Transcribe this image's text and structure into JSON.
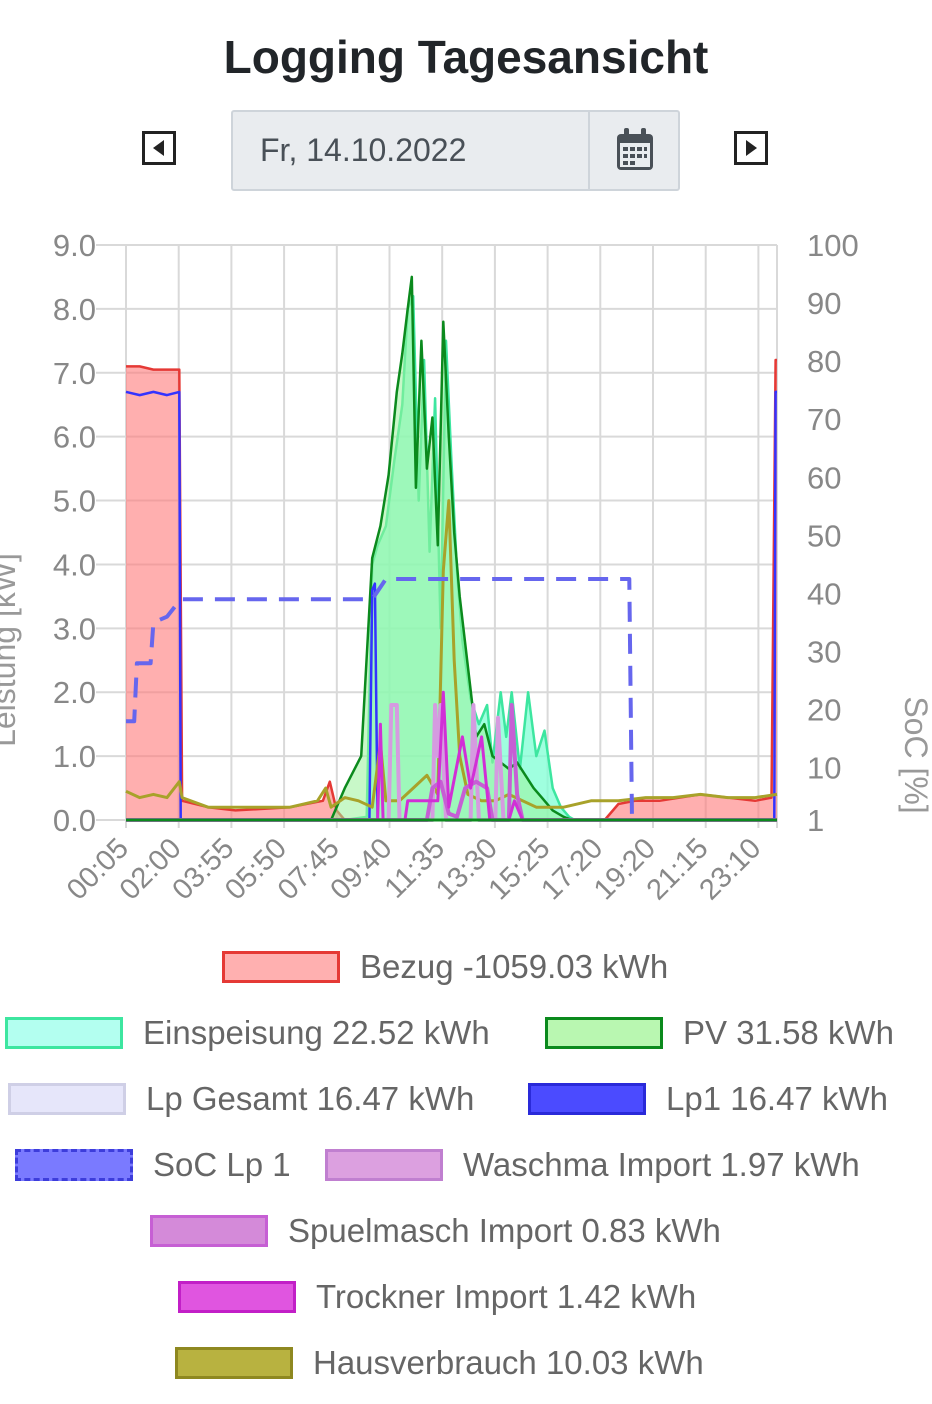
{
  "page": {
    "title": "Logging Tagesansicht",
    "date_value": "Fr, 14.10.2022",
    "prev_icon": "caret-left-icon",
    "next_icon": "caret-right-icon",
    "calendar_icon": "calendar-icon"
  },
  "chart_data": {
    "type": "area",
    "xlabel": "",
    "ylabel": "Leistung [kW]",
    "y2label": "SoC [%]",
    "ylim": [
      0,
      9
    ],
    "y2lim": [
      1,
      100
    ],
    "y_ticks": [
      "0.0",
      "1.0",
      "2.0",
      "3.0",
      "4.0",
      "5.0",
      "6.0",
      "7.0",
      "8.0",
      "9.0"
    ],
    "y2_ticks": [
      "1",
      "10",
      "20",
      "30",
      "40",
      "50",
      "60",
      "70",
      "80",
      "90",
      "100"
    ],
    "x_ticks": [
      "00:05",
      "02:00",
      "03:55",
      "05:50",
      "07:45",
      "09:40",
      "11:35",
      "13:30",
      "15:25",
      "17:20",
      "19:20",
      "21:15",
      "23:10"
    ],
    "grid": true,
    "legend_position": "bottom",
    "colors": {
      "bezug": "#ff7a7a",
      "bezug_line": "#e53935",
      "einspeisung": "#7fffd4",
      "einspeisung_line": "#3de6a0",
      "pv": "#9bf29b",
      "pv_line": "#0b8a1d",
      "lp_gesamt": "#e6e6fa",
      "lp1": "#3333ff",
      "soc": "#6666ee",
      "waschma": "#d59be0",
      "spuelmasch": "#c65fd4",
      "trockner": "#d12fd6",
      "haus": "#a8a22a"
    },
    "series": [
      {
        "name": "Bezug",
        "legend": "Bezug -1059.03 kWh",
        "axis": "y",
        "points": [
          [
            0,
            7.1
          ],
          [
            0.5,
            7.1
          ],
          [
            1,
            7.05
          ],
          [
            1.3,
            7.05
          ],
          [
            1.95,
            7.05
          ],
          [
            2.05,
            0.3
          ],
          [
            3,
            0.2
          ],
          [
            4,
            0.15
          ],
          [
            6,
            0.2
          ],
          [
            7.2,
            0.3
          ],
          [
            7.45,
            0.6
          ],
          [
            7.7,
            0.15
          ],
          [
            8,
            0
          ],
          [
            17.5,
            0
          ],
          [
            18,
            0.25
          ],
          [
            18.6,
            0.3
          ],
          [
            19.5,
            0.3
          ],
          [
            21,
            0.4
          ],
          [
            23,
            0.3
          ],
          [
            23.6,
            0.35
          ],
          [
            23.75,
            7.2
          ],
          [
            23.8,
            7.2
          ]
        ]
      },
      {
        "name": "Einspeisung",
        "legend": "Einspeisung 22.52 kWh",
        "axis": "y",
        "points": [
          [
            0,
            0
          ],
          [
            8,
            0
          ],
          [
            8.8,
            0.05
          ],
          [
            9.0,
            4.0
          ],
          [
            9.2,
            4.3
          ],
          [
            9.5,
            4.6
          ],
          [
            9.8,
            5.6
          ],
          [
            10.1,
            6.5
          ],
          [
            10.3,
            8.0
          ],
          [
            10.5,
            8.2
          ],
          [
            10.7,
            5.0
          ],
          [
            10.9,
            7.2
          ],
          [
            11.1,
            4.2
          ],
          [
            11.3,
            6.6
          ],
          [
            11.5,
            3.0
          ],
          [
            11.7,
            7.5
          ],
          [
            11.9,
            5.6
          ],
          [
            12.1,
            3.9
          ],
          [
            12.3,
            2.8
          ],
          [
            12.6,
            1.9
          ],
          [
            12.9,
            1.5
          ],
          [
            13.2,
            1.8
          ],
          [
            13.4,
            0.9
          ],
          [
            13.7,
            2.0
          ],
          [
            13.9,
            1.3
          ],
          [
            14.1,
            2.0
          ],
          [
            14.4,
            0.8
          ],
          [
            14.7,
            2.0
          ],
          [
            15.0,
            1.0
          ],
          [
            15.3,
            1.4
          ],
          [
            15.6,
            0.5
          ],
          [
            15.9,
            0.2
          ],
          [
            16.2,
            0.05
          ],
          [
            16.4,
            0
          ],
          [
            23.8,
            0
          ]
        ]
      },
      {
        "name": "PV",
        "legend": "PV 31.58 kWh",
        "axis": "y",
        "points": [
          [
            0,
            0
          ],
          [
            7.5,
            0
          ],
          [
            8.0,
            0.5
          ],
          [
            8.6,
            1.0
          ],
          [
            9.0,
            4.1
          ],
          [
            9.3,
            4.6
          ],
          [
            9.6,
            5.4
          ],
          [
            9.9,
            6.7
          ],
          [
            10.1,
            7.3
          ],
          [
            10.3,
            8.0
          ],
          [
            10.45,
            8.5
          ],
          [
            10.6,
            5.2
          ],
          [
            10.8,
            7.5
          ],
          [
            11.0,
            5.5
          ],
          [
            11.2,
            6.3
          ],
          [
            11.4,
            4.3
          ],
          [
            11.6,
            7.8
          ],
          [
            11.8,
            6.0
          ],
          [
            12.0,
            4.5
          ],
          [
            12.2,
            3.5
          ],
          [
            12.5,
            2.4
          ],
          [
            12.8,
            1.3
          ],
          [
            13.1,
            1.5
          ],
          [
            13.4,
            1.0
          ],
          [
            13.7,
            0.9
          ],
          [
            14.0,
            0.8
          ],
          [
            14.3,
            0.9
          ],
          [
            14.6,
            0.7
          ],
          [
            14.9,
            0.5
          ],
          [
            15.2,
            0.35
          ],
          [
            15.6,
            0.15
          ],
          [
            16.0,
            0.05
          ],
          [
            16.3,
            0
          ],
          [
            23.8,
            0
          ]
        ]
      },
      {
        "name": "Lp Gesamt",
        "legend": "Lp Gesamt 16.47 kWh",
        "axis": "y",
        "points": [
          [
            0,
            6.7
          ],
          [
            1.95,
            6.7
          ],
          [
            2.0,
            0
          ],
          [
            8.9,
            0
          ],
          [
            9.0,
            3.6
          ],
          [
            9.3,
            3.9
          ],
          [
            16.5,
            3.9
          ],
          [
            17.0,
            0.1
          ],
          [
            23.7,
            0
          ],
          [
            23.75,
            6.7
          ],
          [
            23.8,
            6.7
          ]
        ]
      },
      {
        "name": "Lp1",
        "legend": "Lp1 16.47 kWh",
        "axis": "y",
        "points": [
          [
            0,
            6.7
          ],
          [
            0.5,
            6.65
          ],
          [
            1,
            6.7
          ],
          [
            1.5,
            6.65
          ],
          [
            1.95,
            6.7
          ],
          [
            2.0,
            0
          ],
          [
            8.9,
            0
          ],
          [
            9.0,
            3.6
          ],
          [
            9.1,
            3.7
          ],
          [
            9.2,
            0
          ],
          [
            23.7,
            0
          ],
          [
            23.75,
            6.7
          ],
          [
            23.8,
            6.7
          ]
        ]
      },
      {
        "name": "SoC Lp 1",
        "legend": "SoC Lp 1",
        "axis": "y2",
        "dashed": true,
        "points": [
          [
            0,
            18
          ],
          [
            0.3,
            18
          ],
          [
            0.4,
            28
          ],
          [
            0.9,
            28
          ],
          [
            1.0,
            35
          ],
          [
            1.5,
            36
          ],
          [
            2.0,
            39
          ],
          [
            9.0,
            39
          ],
          [
            9.5,
            42.5
          ],
          [
            18.4,
            42.5
          ],
          [
            18.5,
            1
          ]
        ]
      },
      {
        "name": "Waschma Import",
        "legend": "Waschma Import 1.97 kWh",
        "axis": "y",
        "points": [
          [
            0,
            0
          ],
          [
            9.6,
            0
          ],
          [
            9.7,
            1.8
          ],
          [
            9.9,
            1.8
          ],
          [
            10.0,
            0
          ],
          [
            11.2,
            0
          ],
          [
            11.3,
            1.8
          ],
          [
            11.4,
            1.0
          ],
          [
            11.5,
            1.8
          ],
          [
            11.7,
            0
          ],
          [
            12.6,
            0
          ],
          [
            12.7,
            1.8
          ],
          [
            12.9,
            0
          ],
          [
            13.5,
            0
          ],
          [
            13.6,
            1.6
          ],
          [
            13.8,
            0
          ],
          [
            23.8,
            0
          ]
        ]
      },
      {
        "name": "Spuelmasch Import",
        "legend": "Spuelmasch Import 0.83 kWh",
        "axis": "y",
        "points": [
          [
            0,
            0
          ],
          [
            11.0,
            0
          ],
          [
            11.2,
            0.5
          ],
          [
            11.5,
            0.6
          ],
          [
            11.8,
            0.1
          ],
          [
            12.1,
            0.05
          ],
          [
            12.4,
            0.5
          ],
          [
            12.8,
            0.6
          ],
          [
            13.2,
            0.5
          ],
          [
            13.4,
            0
          ],
          [
            14.0,
            0
          ],
          [
            14.1,
            1.8
          ],
          [
            14.3,
            0.4
          ],
          [
            14.5,
            0
          ],
          [
            23.8,
            0
          ]
        ]
      },
      {
        "name": "Trockner Import",
        "legend": "Trockner Import 1.42 kWh",
        "axis": "y",
        "points": [
          [
            0,
            0
          ],
          [
            9.2,
            0
          ],
          [
            9.3,
            1.5
          ],
          [
            9.4,
            0
          ],
          [
            10.2,
            0
          ],
          [
            10.3,
            0.3
          ],
          [
            11.4,
            0.3
          ],
          [
            11.6,
            2.0
          ],
          [
            11.8,
            0.2
          ],
          [
            12.3,
            1.3
          ],
          [
            12.6,
            0.5
          ],
          [
            13.0,
            1.3
          ],
          [
            13.3,
            0
          ],
          [
            14.0,
            0
          ],
          [
            14.2,
            0.3
          ],
          [
            14.5,
            0
          ],
          [
            23.8,
            0
          ]
        ]
      },
      {
        "name": "Hausverbrauch",
        "legend": "Hausverbrauch 10.03 kWh",
        "axis": "y",
        "points": [
          [
            0,
            0.45
          ],
          [
            0.5,
            0.35
          ],
          [
            1.0,
            0.4
          ],
          [
            1.5,
            0.35
          ],
          [
            1.95,
            0.6
          ],
          [
            2.05,
            0.35
          ],
          [
            3,
            0.2
          ],
          [
            4,
            0.2
          ],
          [
            5,
            0.2
          ],
          [
            6,
            0.2
          ],
          [
            7.0,
            0.3
          ],
          [
            7.3,
            0.5
          ],
          [
            7.5,
            0.2
          ],
          [
            8.0,
            0.35
          ],
          [
            8.5,
            0.3
          ],
          [
            9.0,
            0.2
          ],
          [
            9.3,
            1.2
          ],
          [
            9.5,
            0.3
          ],
          [
            10.0,
            0.3
          ],
          [
            10.5,
            0.5
          ],
          [
            11.0,
            0.7
          ],
          [
            11.4,
            0.4
          ],
          [
            11.6,
            3.9
          ],
          [
            11.8,
            5.0
          ],
          [
            12.0,
            2.5
          ],
          [
            12.2,
            1.0
          ],
          [
            12.5,
            0.4
          ],
          [
            13.0,
            0.3
          ],
          [
            13.5,
            0.3
          ],
          [
            14.0,
            0.4
          ],
          [
            15.0,
            0.2
          ],
          [
            16.0,
            0.2
          ],
          [
            17.0,
            0.3
          ],
          [
            18.0,
            0.3
          ],
          [
            19.0,
            0.35
          ],
          [
            20.0,
            0.35
          ],
          [
            21.0,
            0.4
          ],
          [
            22.0,
            0.35
          ],
          [
            23.0,
            0.35
          ],
          [
            23.8,
            0.4
          ]
        ]
      }
    ]
  }
}
